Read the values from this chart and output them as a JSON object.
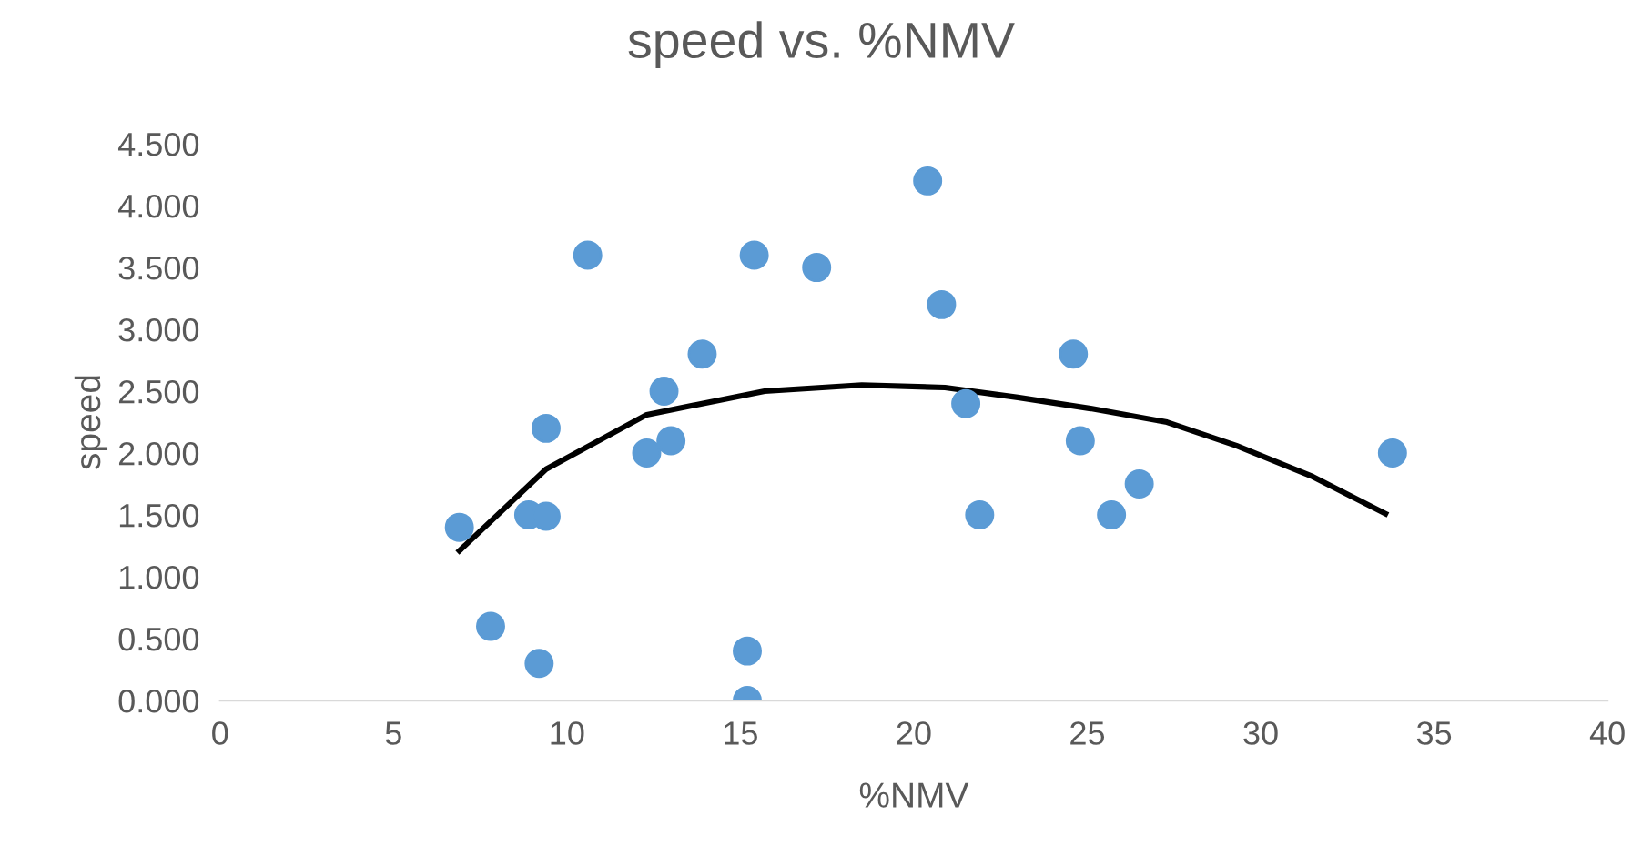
{
  "chart_data": {
    "type": "scatter",
    "title": "speed vs. %NMV",
    "xlabel": "%NMV",
    "ylabel": "speed",
    "xlim": [
      0,
      40
    ],
    "xticks": [
      0,
      5,
      10,
      15,
      20,
      25,
      30,
      35,
      40
    ],
    "ylim": [
      0,
      4.5
    ],
    "yticks": [
      {
        "value": 0,
        "label": "0.000"
      },
      {
        "value": 0.5,
        "label": "0.500"
      },
      {
        "value": 1,
        "label": "1.000"
      },
      {
        "value": 1.5,
        "label": "1.500"
      },
      {
        "value": 2,
        "label": "2.000"
      },
      {
        "value": 2.5,
        "label": "2.500"
      },
      {
        "value": 3,
        "label": "3.000"
      },
      {
        "value": 3.5,
        "label": "3.500"
      },
      {
        "value": 4,
        "label": "4.000"
      },
      {
        "value": 4.5,
        "label": "4.500"
      }
    ],
    "grid": false,
    "legend": false,
    "series": [
      {
        "marker": "circle",
        "color": "#5b9bd5",
        "x": [
          6.9,
          7.8,
          8.9,
          9.2,
          9.4,
          9.4,
          10.6,
          12.3,
          12.8,
          13.0,
          13.9,
          15.2,
          15.2,
          15.4,
          17.2,
          20.4,
          20.8,
          21.5,
          21.9,
          24.6,
          24.8,
          25.7,
          26.5,
          33.8
        ],
        "values": [
          1.4,
          0.6,
          1.5,
          0.3,
          2.2,
          1.49,
          3.6,
          2.0,
          2.5,
          2.1,
          2.8,
          0.4,
          0.0,
          3.6,
          3.5,
          4.2,
          3.2,
          2.4,
          1.5,
          2.8,
          2.1,
          1.5,
          1.75,
          2.0
        ]
      },
      {
        "type": "line",
        "marker": "none",
        "color": "#000000",
        "line_style": "solid",
        "x": [
          6.9,
          9.4,
          12.3,
          15.7,
          18.5,
          20.9,
          23.0,
          25.1,
          27.3,
          29.3,
          31.5,
          33.6
        ],
        "values": [
          1.21,
          1.87,
          2.31,
          2.5,
          2.55,
          2.53,
          2.45,
          2.36,
          2.25,
          2.06,
          1.81,
          1.51
        ]
      }
    ]
  }
}
